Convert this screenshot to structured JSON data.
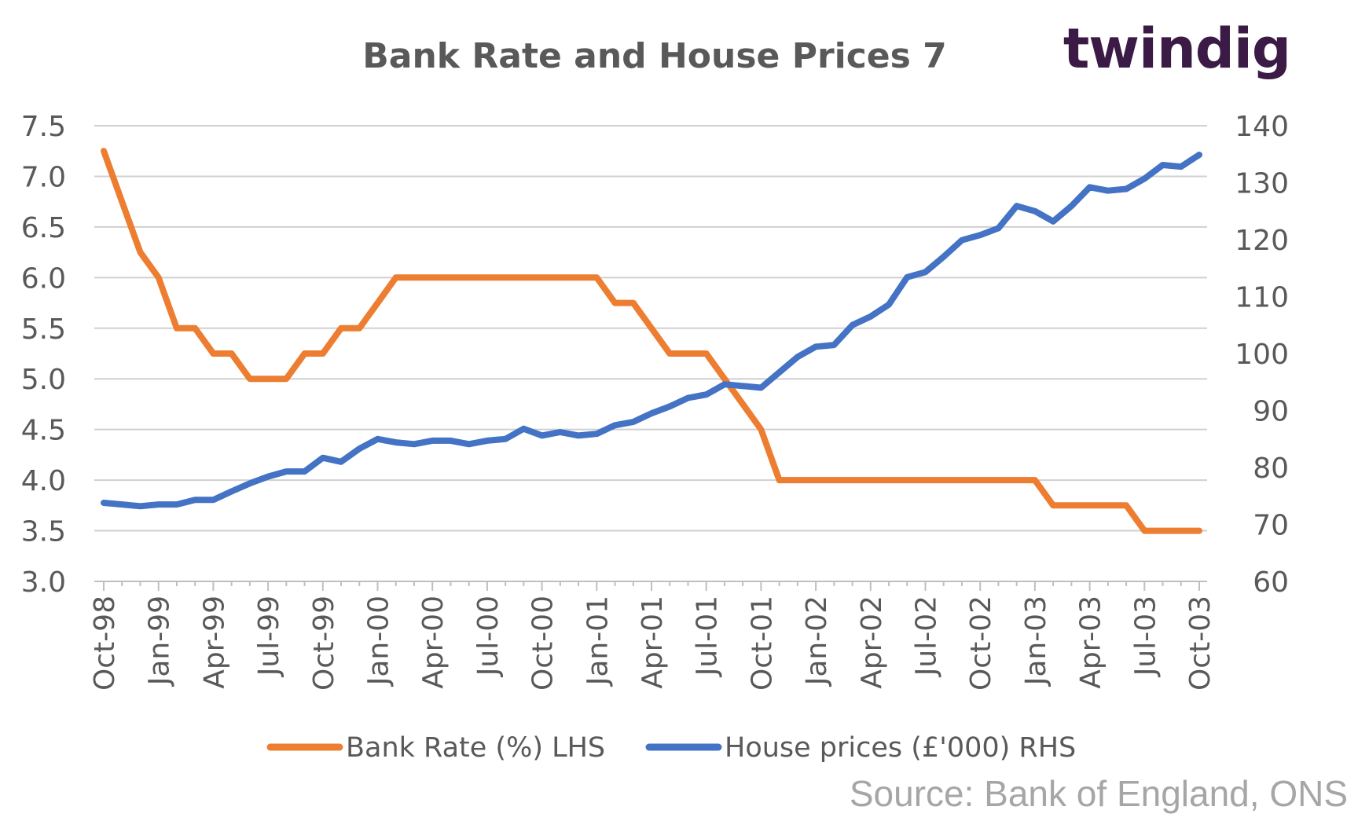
{
  "chart_data": {
    "type": "line",
    "title": "Bank Rate and House Prices 7",
    "logo": "twindig",
    "source": "Source: Bank of England, ONS",
    "x_tick_labels": [
      "Oct-98",
      "Jan-99",
      "Apr-99",
      "Jul-99",
      "Oct-99",
      "Jan-00",
      "Apr-00",
      "Jul-00",
      "Oct-00",
      "Jan-01",
      "Apr-01",
      "Jul-01",
      "Oct-01",
      "Jan-02",
      "Apr-02",
      "Jul-02",
      "Oct-02",
      "Jan-03",
      "Apr-03",
      "Jul-03",
      "Oct-03"
    ],
    "x_start": "Oct-98",
    "x_end": "Oct-03",
    "y_left": {
      "min": 3.0,
      "max": 7.5,
      "step": 0.5,
      "ticks": [
        "3.0",
        "3.5",
        "4.0",
        "4.5",
        "5.0",
        "5.5",
        "6.0",
        "6.5",
        "7.0",
        "7.5"
      ]
    },
    "y_right": {
      "min": 60,
      "max": 140,
      "step": 10,
      "ticks": [
        "60",
        "70",
        "80",
        "90",
        "100",
        "110",
        "120",
        "130",
        "140"
      ]
    },
    "grid": true,
    "legend_position": "bottom",
    "series": [
      {
        "name": "Bank Rate (%) LHS",
        "axis": "left",
        "color": "#ed7d31",
        "values": [
          7.25,
          6.75,
          6.25,
          6.0,
          5.5,
          5.5,
          5.25,
          5.25,
          5.0,
          5.0,
          5.0,
          5.25,
          5.25,
          5.5,
          5.5,
          5.75,
          6.0,
          6.0,
          6.0,
          6.0,
          6.0,
          6.0,
          6.0,
          6.0,
          6.0,
          6.0,
          6.0,
          6.0,
          5.75,
          5.75,
          5.5,
          5.25,
          5.25,
          5.25,
          5.0,
          4.75,
          4.5,
          4.0,
          4.0,
          4.0,
          4.0,
          4.0,
          4.0,
          4.0,
          4.0,
          4.0,
          4.0,
          4.0,
          4.0,
          4.0,
          4.0,
          4.0,
          3.75,
          3.75,
          3.75,
          3.75,
          3.75,
          3.5,
          3.5,
          3.5,
          3.5
        ]
      },
      {
        "name": "House prices (£'000) RHS",
        "axis": "right",
        "color": "#4472c4",
        "values": [
          73.8,
          73.5,
          73.2,
          73.5,
          73.5,
          74.3,
          74.3,
          75.8,
          77.2,
          78.4,
          79.3,
          79.3,
          81.7,
          81.0,
          83.3,
          85.0,
          84.4,
          84.1,
          84.7,
          84.7,
          84.1,
          84.7,
          85.0,
          86.8,
          85.6,
          86.2,
          85.6,
          85.9,
          87.4,
          88.0,
          89.5,
          90.7,
          92.2,
          92.8,
          94.6,
          94.3,
          94.0,
          96.7,
          99.4,
          101.2,
          101.5,
          105.0,
          106.5,
          108.6,
          113.4,
          114.3,
          117.0,
          119.9,
          120.8,
          122.0,
          125.9,
          125.0,
          123.2,
          125.9,
          129.2,
          128.6,
          128.9,
          130.7,
          133.1,
          132.8,
          134.9
        ]
      }
    ]
  }
}
